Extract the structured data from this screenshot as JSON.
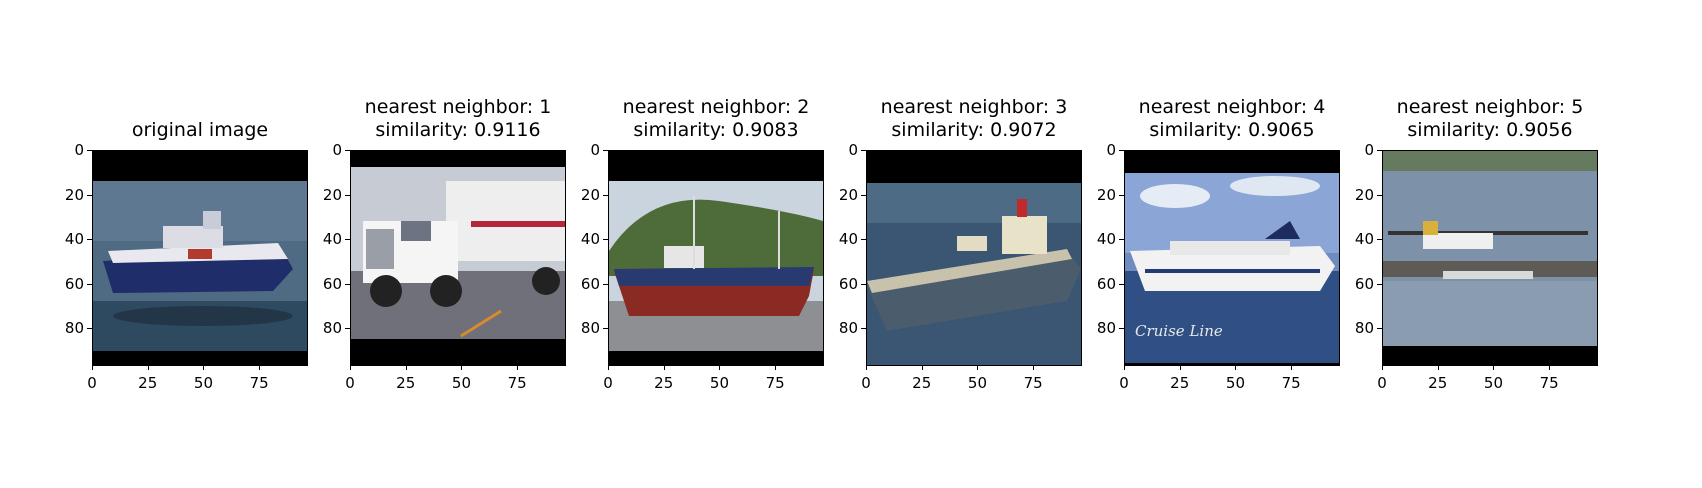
{
  "panels": [
    {
      "title": "original image",
      "subtitle": "",
      "picture": "ship-at-sea"
    },
    {
      "title": "nearest neighbor: 1",
      "subtitle": "similarity: 0.9116",
      "picture": "white-truck"
    },
    {
      "title": "nearest neighbor: 2",
      "subtitle": "similarity: 0.9083",
      "picture": "fishing-boat-on-dock"
    },
    {
      "title": "nearest neighbor: 3",
      "subtitle": "similarity: 0.9072",
      "picture": "tanker-ship"
    },
    {
      "title": "nearest neighbor: 4",
      "subtitle": "similarity: 0.9065",
      "picture": "cruise-ship",
      "watermark": "Cruise Line"
    },
    {
      "title": "nearest neighbor: 5",
      "subtitle": "similarity: 0.9056",
      "picture": "seaplane-on-water"
    }
  ],
  "axes": {
    "y_ticks": [
      "0",
      "20",
      "40",
      "60",
      "80"
    ],
    "x_ticks": [
      "0",
      "25",
      "50",
      "75"
    ],
    "image_size": 96
  }
}
